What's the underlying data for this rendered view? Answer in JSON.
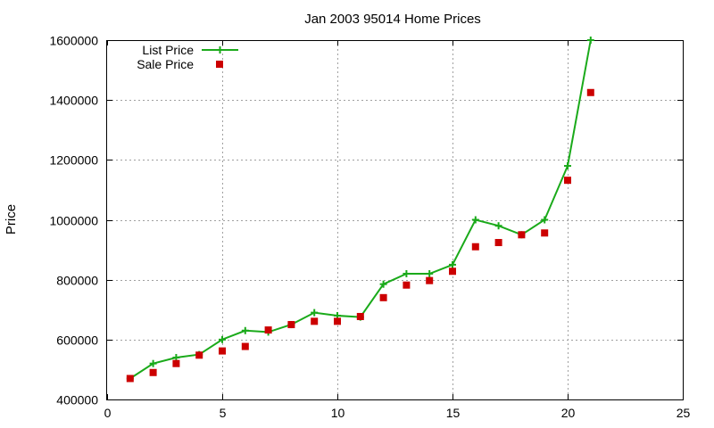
{
  "chart_data": {
    "type": "line",
    "title": "Jan 2003 95014 Home Prices",
    "xlabel": "",
    "ylabel": "Price",
    "xlim": [
      0,
      25
    ],
    "ylim": [
      400000,
      1600000
    ],
    "xticks": [
      0,
      5,
      10,
      15,
      20,
      25
    ],
    "yticks": [
      400000,
      600000,
      800000,
      1000000,
      1200000,
      1400000,
      1600000
    ],
    "grid": true,
    "legend_position": "top-left",
    "series": [
      {
        "name": "List Price",
        "style": "line-with-plus-markers",
        "color": "#1aaa1a",
        "points": [
          [
            1,
            470000
          ],
          [
            2,
            520000
          ],
          [
            3,
            540000
          ],
          [
            4,
            550000
          ],
          [
            5,
            600000
          ],
          [
            6,
            630000
          ],
          [
            7,
            625000
          ],
          [
            8,
            650000
          ],
          [
            9,
            690000
          ],
          [
            10,
            680000
          ],
          [
            11,
            675000
          ],
          [
            12,
            785000
          ],
          [
            13,
            820000
          ],
          [
            14,
            820000
          ],
          [
            15,
            850000
          ],
          [
            16,
            1000000
          ],
          [
            17,
            980000
          ],
          [
            18,
            950000
          ],
          [
            19,
            1000000
          ],
          [
            20,
            1180000
          ],
          [
            21,
            1600000
          ]
        ]
      },
      {
        "name": "Sale Price",
        "style": "square-markers",
        "color": "#cc0000",
        "points": [
          [
            1,
            470000
          ],
          [
            2,
            490000
          ],
          [
            3,
            520000
          ],
          [
            4,
            548000
          ],
          [
            5,
            562000
          ],
          [
            6,
            577000
          ],
          [
            7,
            632000
          ],
          [
            8,
            650000
          ],
          [
            9,
            661000
          ],
          [
            10,
            661000
          ],
          [
            11,
            677000
          ],
          [
            12,
            740000
          ],
          [
            13,
            782000
          ],
          [
            14,
            797000
          ],
          [
            15,
            828000
          ],
          [
            16,
            910000
          ],
          [
            17,
            924000
          ],
          [
            18,
            950000
          ],
          [
            19,
            956000
          ],
          [
            20,
            1132000
          ],
          [
            21,
            1425000
          ]
        ]
      }
    ]
  }
}
